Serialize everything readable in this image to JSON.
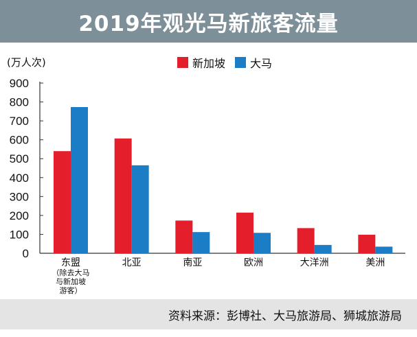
{
  "header": {
    "title": "2019年观光马新旅客流量"
  },
  "unit_label": "(万人次)",
  "source": "资料来源：彭博社、大马旅游局、狮城旅游局",
  "chart_data": {
    "type": "bar",
    "title": "2019年观光马新旅客流量",
    "ylabel": "(万人次)",
    "xlabel": "",
    "ylim": [
      0,
      900
    ],
    "yticks": [
      "0",
      "100",
      "200",
      "300",
      "400",
      "500",
      "600",
      "700",
      "800",
      "900"
    ],
    "categories": [
      "东盟",
      "北亚",
      "南亚",
      "欧洲",
      "大洋洲",
      "美洲"
    ],
    "category_note": {
      "index": 0,
      "lines": [
        "（除去大马",
        "与新加坡",
        "游客）"
      ]
    },
    "legend_position": "top-center",
    "series": [
      {
        "name": "新加坡",
        "color": "#e41e2b",
        "values": [
          540,
          607,
          173,
          215,
          133,
          98
        ]
      },
      {
        "name": "大马",
        "color": "#1b7dc5",
        "values": [
          773,
          465,
          112,
          108,
          44,
          35
        ]
      }
    ]
  }
}
